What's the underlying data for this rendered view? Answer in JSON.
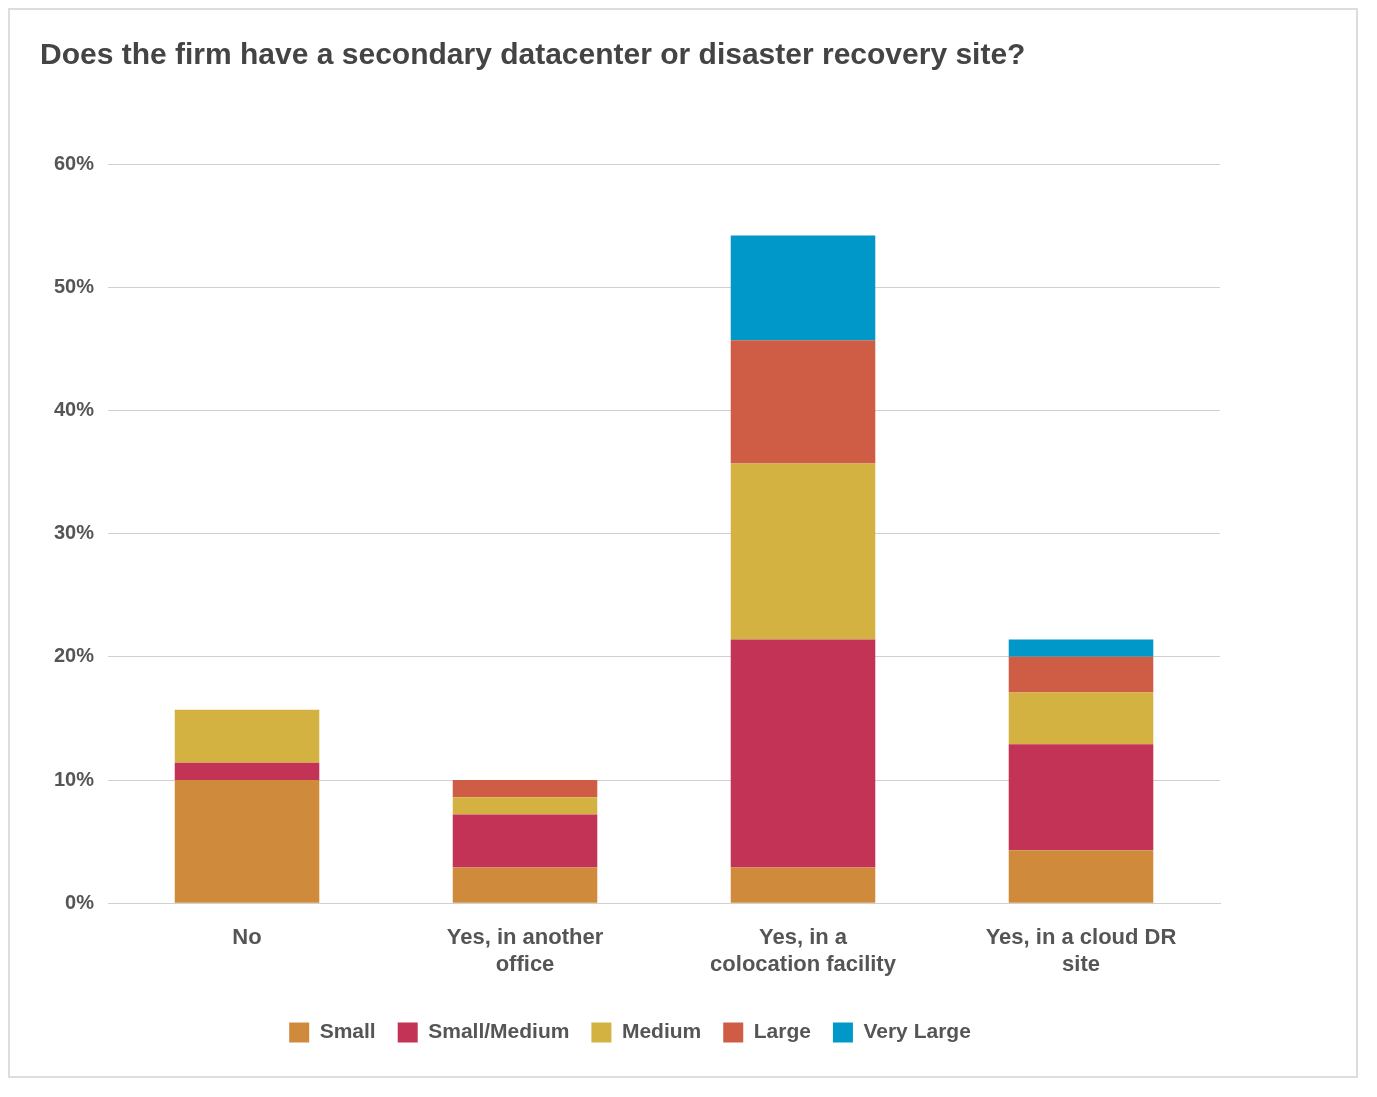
{
  "chart_data": {
    "type": "bar",
    "title": "Does the firm have a secondary datacenter or disaster recovery site?",
    "stacked": true,
    "categories": [
      "No",
      "Yes, in another office",
      "Yes, in a colocation facility",
      "Yes, in a cloud DR site"
    ],
    "series": [
      {
        "name": "Small",
        "color": "#d08a3c",
        "values": [
          10.0,
          2.9,
          2.9,
          4.3
        ]
      },
      {
        "name": "Small/Medium",
        "color": "#c33355",
        "values": [
          1.4,
          4.3,
          18.5,
          8.6
        ]
      },
      {
        "name": "Medium",
        "color": "#d4b242",
        "values": [
          4.3,
          1.4,
          14.3,
          4.2
        ]
      },
      {
        "name": "Large",
        "color": "#cf5c45",
        "values": [
          null,
          1.4,
          10.0,
          2.9
        ]
      },
      {
        "name": "Very Large",
        "color": "#0098c9",
        "values": [
          null,
          null,
          8.5,
          1.4
        ]
      }
    ],
    "ylim": [
      0,
      60
    ],
    "yticks": [
      {
        "value": 0,
        "label": "0%"
      },
      {
        "value": 10,
        "label": "10%"
      },
      {
        "value": 20,
        "label": "20%"
      },
      {
        "value": 30,
        "label": "30%"
      },
      {
        "value": 40,
        "label": "40%"
      },
      {
        "value": 50,
        "label": "50%"
      },
      {
        "value": 60,
        "label": "60%"
      }
    ],
    "grid": "y",
    "legend": "bottom"
  }
}
